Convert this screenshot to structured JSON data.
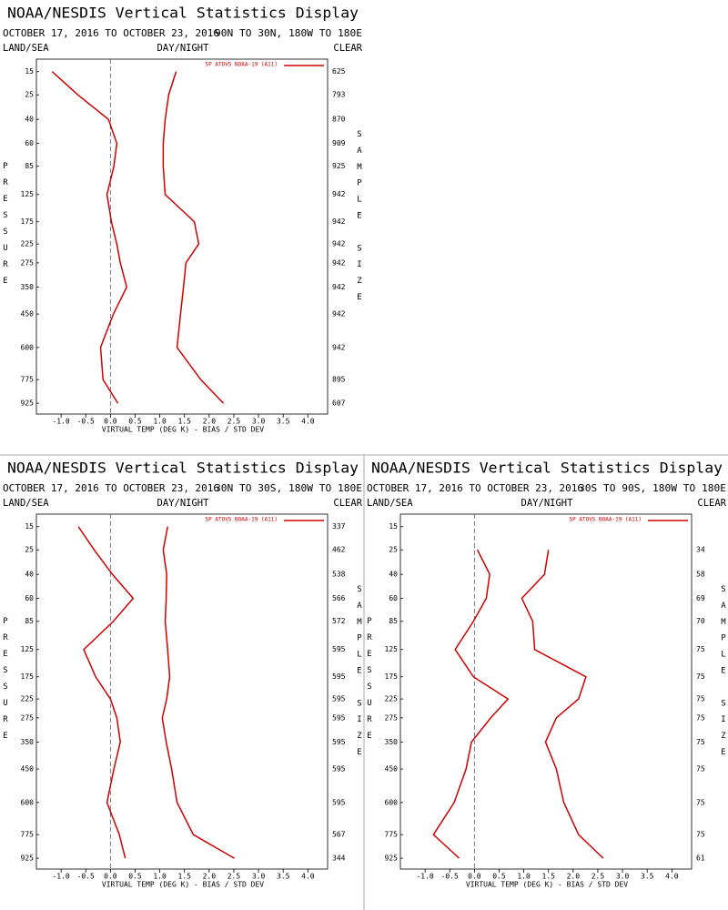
{
  "chart_data": [
    {
      "type": "line",
      "title": "NOAA/NESDIS Vertical Statistics Display",
      "subtitle": "OCTOBER 17, 2016 TO OCTOBER 23, 2016",
      "region": "90N TO 30N, 180W TO 180E",
      "left_label": "LAND/SEA",
      "center_label": "DAY/NIGHT",
      "right_label": "CLEAR",
      "legend": "SP ATOVS NOAA-19 (A11)",
      "xlabel": "VIRTUAL TEMP (DEG K) - BIAS / STD DEV",
      "ylabel": "PRESSURE",
      "y2label": "SAMPLE SIZE",
      "xlim": [
        -1.5,
        4.4
      ],
      "xticks": [
        {
          "value": -1,
          "label": "-1.0"
        },
        -0.5,
        {
          "value": 0,
          "label": "0.0"
        },
        0.5,
        {
          "value": 1,
          "label": "1.0"
        },
        1.5,
        {
          "value": 2,
          "label": "2.0"
        },
        2.5,
        {
          "value": 3,
          "label": "3.0"
        },
        3.5,
        {
          "value": 4,
          "label": "4.0"
        }
      ],
      "ylim": [
        1000,
        11
      ],
      "yticks": [
        15,
        25,
        40,
        60,
        85,
        125,
        175,
        225,
        275,
        350,
        450,
        600,
        775,
        925
      ],
      "y": [
        15,
        25,
        40,
        60,
        85,
        125,
        175,
        225,
        275,
        350,
        450,
        600,
        775,
        925
      ],
      "sample_size": [
        625,
        793,
        870,
        909,
        925,
        942,
        942,
        942,
        942,
        942,
        942,
        942,
        895,
        607
      ],
      "series": [
        {
          "color": "#d00000",
          "values": [
            -1.18,
            -0.66,
            -0.04,
            0.13,
            0.07,
            -0.07,
            0.02,
            0.13,
            0.2,
            0.33,
            0.06,
            -0.2,
            -0.15,
            0.15
          ]
        },
        {
          "color": "#d00000",
          "values": [
            1.33,
            1.18,
            1.11,
            1.07,
            1.07,
            1.11,
            1.7,
            1.79,
            1.53,
            1.48,
            1.42,
            1.35,
            1.83,
            2.29
          ]
        }
      ]
    },
    {
      "type": "line",
      "title": "NOAA/NESDIS Vertical Statistics Display",
      "subtitle": "OCTOBER 17, 2016 TO OCTOBER 23, 2016",
      "region": "30N TO 30S, 180W TO 180E",
      "left_label": "LAND/SEA",
      "center_label": "DAY/NIGHT",
      "right_label": "CLEAR",
      "legend": "SP ATOVS NOAA-19 (A11)",
      "xlabel": "VIRTUAL TEMP (DEG K) - BIAS / STD DEV",
      "ylabel": "PRESSURE",
      "y2label": "SAMPLE SIZE",
      "xlim": [
        -1.5,
        4.4
      ],
      "xticks": [
        {
          "value": -1,
          "label": "-1.0"
        },
        -0.5,
        {
          "value": 0,
          "label": "0.0"
        },
        0.5,
        {
          "value": 1,
          "label": "1.0"
        },
        1.5,
        {
          "value": 2,
          "label": "2.0"
        },
        2.5,
        {
          "value": 3,
          "label": "3.0"
        },
        3.5,
        {
          "value": 4,
          "label": "4.0"
        }
      ],
      "ylim": [
        1000,
        11
      ],
      "yticks": [
        15,
        25,
        40,
        60,
        85,
        125,
        175,
        225,
        275,
        350,
        450,
        600,
        775,
        925
      ],
      "y": [
        15,
        25,
        40,
        60,
        85,
        125,
        175,
        225,
        275,
        350,
        450,
        600,
        775,
        925
      ],
      "sample_size": [
        337,
        462,
        538,
        566,
        572,
        595,
        595,
        595,
        595,
        595,
        595,
        595,
        567,
        344
      ],
      "series": [
        {
          "color": "#d00000",
          "values": [
            -0.65,
            -0.33,
            0.04,
            0.46,
            0.06,
            -0.54,
            -0.3,
            0,
            0.13,
            0.2,
            0.07,
            -0.07,
            0.18,
            0.3
          ]
        },
        {
          "color": "#d00000",
          "values": [
            1.16,
            1.07,
            1.14,
            1.13,
            1.11,
            1.16,
            1.2,
            1.14,
            1.05,
            1.13,
            1.24,
            1.35,
            1.68,
            2.51
          ]
        }
      ]
    },
    {
      "type": "line",
      "title": "NOAA/NESDIS Vertical Statistics Display",
      "subtitle": "OCTOBER 17, 2016 TO OCTOBER 23, 2016",
      "region": "30S TO 90S, 180W TO 180E",
      "left_label": "LAND/SEA",
      "center_label": "DAY/NIGHT",
      "right_label": "CLEAR",
      "legend": "SP ATOVS NOAA-19 (A11)",
      "xlabel": "VIRTUAL TEMP (DEG K) - BIAS / STD DEV",
      "ylabel": "PRESSURE",
      "y2label": "SAMPLE SIZE",
      "xlim": [
        -1.5,
        4.4
      ],
      "xticks": [
        {
          "value": -1,
          "label": "-1.0"
        },
        -0.5,
        {
          "value": 0,
          "label": "0.0"
        },
        0.5,
        {
          "value": 1,
          "label": "1.0"
        },
        1.5,
        {
          "value": 2,
          "label": "2.0"
        },
        2.5,
        {
          "value": 3,
          "label": "3.0"
        },
        3.5,
        {
          "value": 4,
          "label": "4.0"
        }
      ],
      "ylim": [
        1000,
        11
      ],
      "yticks": [
        15,
        25,
        40,
        60,
        85,
        125,
        175,
        225,
        275,
        350,
        450,
        600,
        775,
        925
      ],
      "y": [
        15,
        25,
        40,
        60,
        85,
        125,
        175,
        225,
        275,
        350,
        450,
        600,
        775,
        925
      ],
      "sample_size": [
        null,
        34,
        58,
        69,
        70,
        75,
        75,
        75,
        75,
        75,
        75,
        75,
        75,
        61
      ],
      "series": [
        {
          "color": "#d00000",
          "values": [
            null,
            0.06,
            0.31,
            0.24,
            -0.02,
            -0.39,
            -0.02,
            0.68,
            0.33,
            -0.06,
            -0.17,
            -0.41,
            -0.83,
            -0.31
          ]
        },
        {
          "color": "#d00000",
          "values": [
            null,
            1.5,
            1.42,
            0.96,
            1.18,
            1.22,
            2.26,
            2.11,
            1.66,
            1.44,
            1.66,
            1.81,
            2.11,
            2.61
          ]
        }
      ]
    }
  ]
}
